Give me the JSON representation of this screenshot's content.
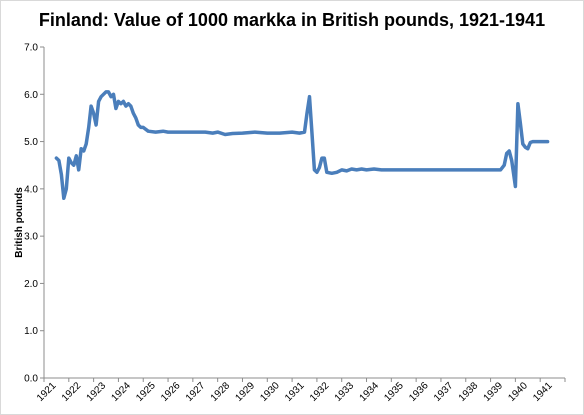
{
  "chart_data": {
    "type": "line",
    "title": "Finland: Value of 1000 markka in British pounds, 1921-1941",
    "xlabel": "",
    "ylabel": "British pounds",
    "ylim": [
      0,
      7
    ],
    "yticks": [
      "0.0",
      "1.0",
      "2.0",
      "3.0",
      "4.0",
      "5.0",
      "6.0",
      "7.0"
    ],
    "xlim": [
      1921,
      1942
    ],
    "xticks": [
      "1921",
      "1922",
      "1923",
      "1924",
      "1925",
      "1926",
      "1927",
      "1928",
      "1929",
      "1930",
      "1931",
      "1932",
      "1933",
      "1934",
      "1935",
      "1936",
      "1937",
      "1938",
      "1939",
      "1940",
      "1941"
    ],
    "grid": false,
    "legend": "none",
    "line_color": "#4a7ebb",
    "series": [
      {
        "values": [
          [
            1921.5,
            4.65
          ],
          [
            1921.6,
            4.6
          ],
          [
            1921.7,
            4.3
          ],
          [
            1921.8,
            3.8
          ],
          [
            1921.9,
            4.0
          ],
          [
            1922.0,
            4.65
          ],
          [
            1922.1,
            4.55
          ],
          [
            1922.2,
            4.5
          ],
          [
            1922.3,
            4.7
          ],
          [
            1922.4,
            4.4
          ],
          [
            1922.5,
            4.85
          ],
          [
            1922.6,
            4.8
          ],
          [
            1922.7,
            4.95
          ],
          [
            1922.8,
            5.3
          ],
          [
            1922.9,
            5.75
          ],
          [
            1923.0,
            5.6
          ],
          [
            1923.1,
            5.35
          ],
          [
            1923.2,
            5.85
          ],
          [
            1923.3,
            5.95
          ],
          [
            1923.4,
            6.0
          ],
          [
            1923.5,
            6.05
          ],
          [
            1923.6,
            6.05
          ],
          [
            1923.7,
            5.95
          ],
          [
            1923.8,
            6.0
          ],
          [
            1923.9,
            5.7
          ],
          [
            1924.0,
            5.85
          ],
          [
            1924.1,
            5.8
          ],
          [
            1924.2,
            5.85
          ],
          [
            1924.3,
            5.75
          ],
          [
            1924.4,
            5.8
          ],
          [
            1924.5,
            5.75
          ],
          [
            1924.6,
            5.6
          ],
          [
            1924.7,
            5.5
          ],
          [
            1924.8,
            5.35
          ],
          [
            1924.9,
            5.3
          ],
          [
            1925.0,
            5.3
          ],
          [
            1925.2,
            5.22
          ],
          [
            1925.5,
            5.2
          ],
          [
            1925.8,
            5.22
          ],
          [
            1926.0,
            5.2
          ],
          [
            1926.5,
            5.2
          ],
          [
            1927.0,
            5.2
          ],
          [
            1927.5,
            5.2
          ],
          [
            1927.8,
            5.18
          ],
          [
            1928.0,
            5.2
          ],
          [
            1928.3,
            5.15
          ],
          [
            1928.6,
            5.17
          ],
          [
            1929.0,
            5.18
          ],
          [
            1929.5,
            5.2
          ],
          [
            1930.0,
            5.18
          ],
          [
            1930.5,
            5.18
          ],
          [
            1931.0,
            5.2
          ],
          [
            1931.3,
            5.18
          ],
          [
            1931.5,
            5.2
          ],
          [
            1931.6,
            5.6
          ],
          [
            1931.7,
            5.95
          ],
          [
            1931.8,
            5.2
          ],
          [
            1931.9,
            4.4
          ],
          [
            1932.0,
            4.35
          ],
          [
            1932.1,
            4.45
          ],
          [
            1932.2,
            4.65
          ],
          [
            1932.3,
            4.65
          ],
          [
            1932.4,
            4.35
          ],
          [
            1932.6,
            4.33
          ],
          [
            1932.8,
            4.35
          ],
          [
            1933.0,
            4.4
          ],
          [
            1933.2,
            4.38
          ],
          [
            1933.4,
            4.42
          ],
          [
            1933.6,
            4.4
          ],
          [
            1933.8,
            4.42
          ],
          [
            1934.0,
            4.4
          ],
          [
            1934.3,
            4.42
          ],
          [
            1934.6,
            4.4
          ],
          [
            1935.0,
            4.4
          ],
          [
            1936.0,
            4.4
          ],
          [
            1937.0,
            4.4
          ],
          [
            1938.0,
            4.4
          ],
          [
            1939.0,
            4.4
          ],
          [
            1939.4,
            4.4
          ],
          [
            1939.55,
            4.5
          ],
          [
            1939.65,
            4.75
          ],
          [
            1939.75,
            4.8
          ],
          [
            1939.85,
            4.6
          ],
          [
            1940.0,
            4.05
          ],
          [
            1940.1,
            5.8
          ],
          [
            1940.2,
            5.4
          ],
          [
            1940.3,
            4.95
          ],
          [
            1940.4,
            4.88
          ],
          [
            1940.5,
            4.85
          ],
          [
            1940.6,
            4.98
          ],
          [
            1940.7,
            5.0
          ],
          [
            1941.0,
            5.0
          ],
          [
            1941.3,
            5.0
          ]
        ]
      }
    ]
  }
}
